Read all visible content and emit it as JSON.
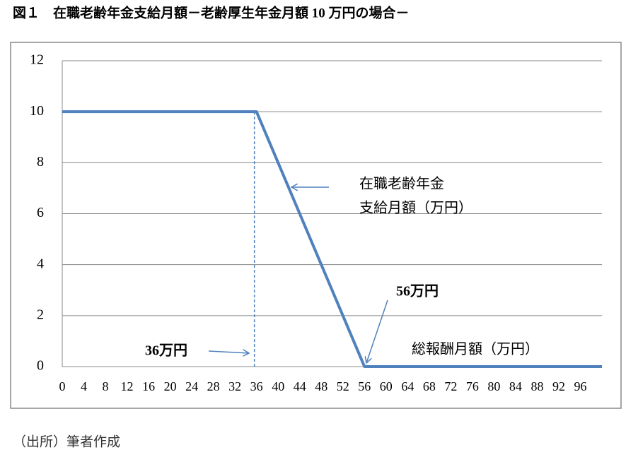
{
  "chart_data": {
    "type": "line",
    "title": "図１　在職老齢年金支給月額－老齢厚生年金月額 10 万円の場合－",
    "x": [
      0,
      36,
      56,
      100
    ],
    "series": [
      {
        "color": "#4f81bd",
        "values": [
          10,
          10,
          0,
          0
        ]
      }
    ],
    "xlim": [
      0,
      100
    ],
    "xticks": [
      0,
      4,
      8,
      12,
      16,
      20,
      24,
      28,
      32,
      36,
      40,
      44,
      48,
      52,
      56,
      60,
      64,
      68,
      72,
      76,
      80,
      84,
      88,
      92,
      96
    ],
    "ylim": [
      0,
      12
    ],
    "yticks": [
      0,
      2,
      4,
      6,
      8,
      10,
      12
    ],
    "grid": true,
    "annotations": [
      "在職老齢年金",
      "支給月額（万円）",
      "56万円",
      "36万円",
      "総報酬月額（万円）"
    ],
    "source": "（出所）筆者作成"
  }
}
